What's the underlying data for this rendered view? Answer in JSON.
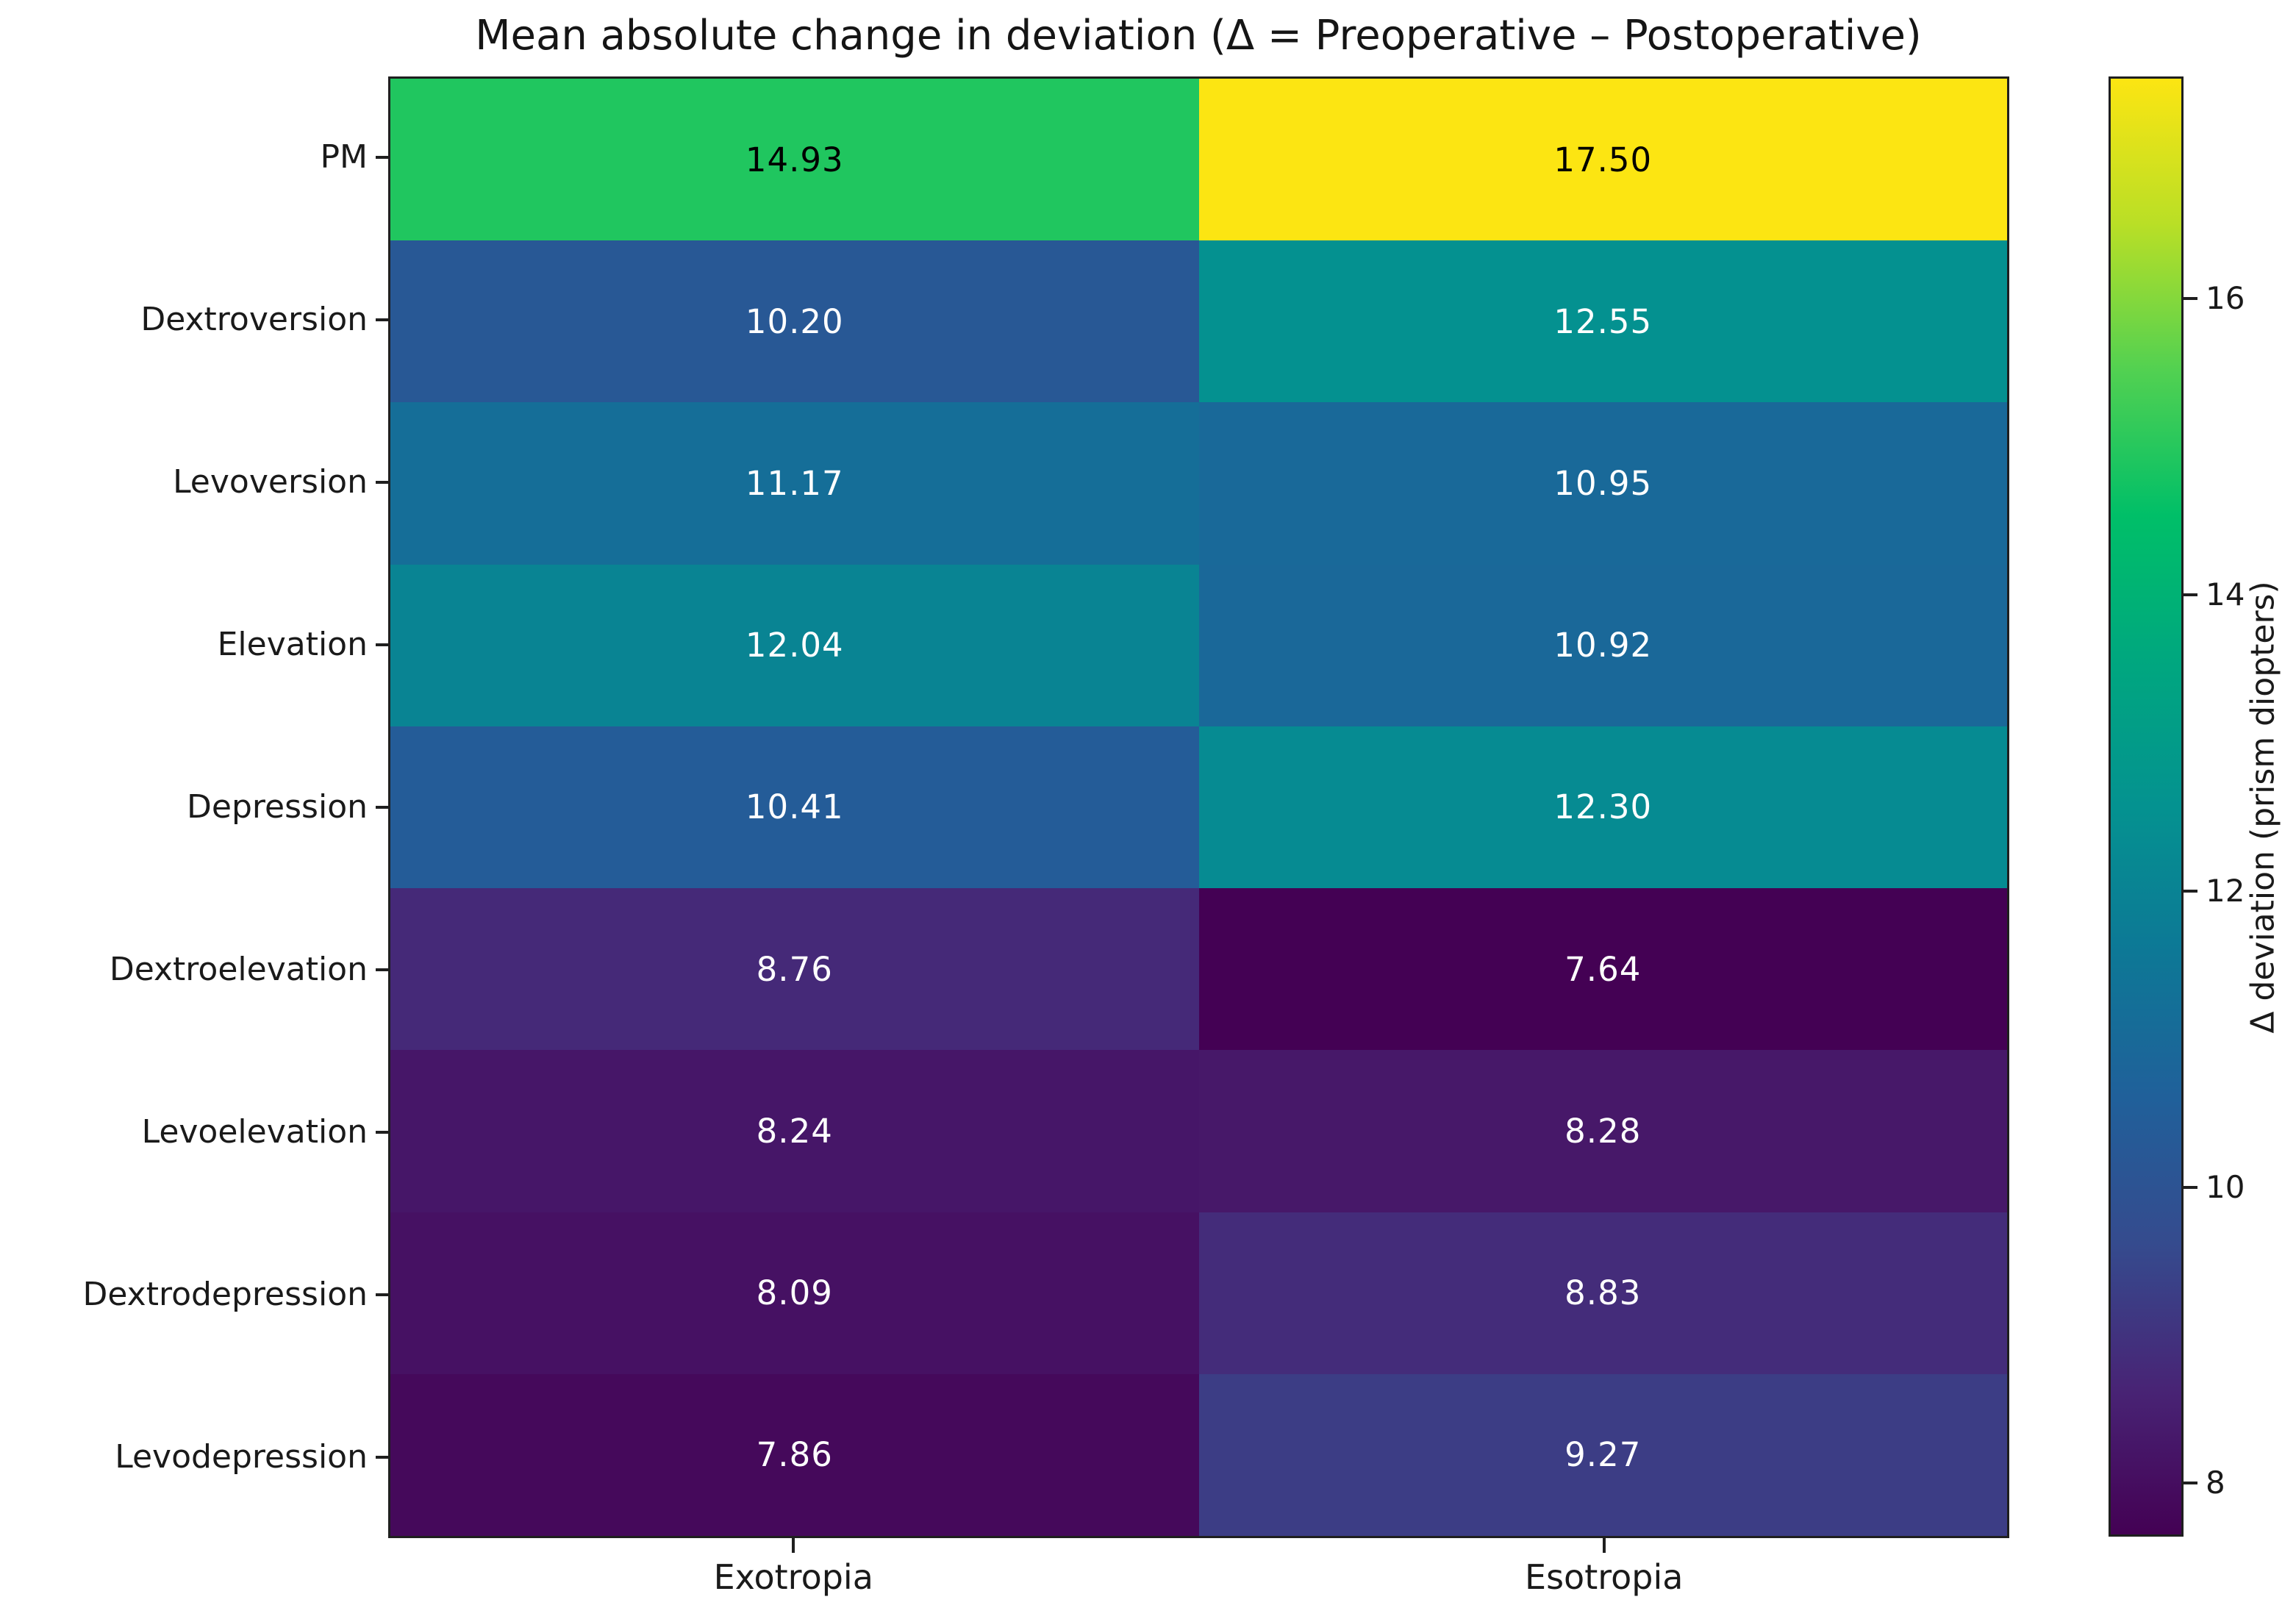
{
  "chart_data": {
    "type": "heatmap",
    "title": "Mean absolute change in deviation (Δ = Preoperative – Postoperative)",
    "rows": [
      "PM",
      "Dextroversion",
      "Levoversion",
      "Elevation",
      "Depression",
      "Dextroelevation",
      "Levoelevation",
      "Dextrodepression",
      "Levodepression"
    ],
    "columns": [
      "Exotropia",
      "Esotropia"
    ],
    "values": [
      [
        14.93,
        17.5
      ],
      [
        10.2,
        12.55
      ],
      [
        11.17,
        10.95
      ],
      [
        12.04,
        10.92
      ],
      [
        10.41,
        12.3
      ],
      [
        8.76,
        7.64
      ],
      [
        8.24,
        8.28
      ],
      [
        8.09,
        8.83
      ],
      [
        7.86,
        9.27
      ]
    ],
    "cell_label_format": "0.00",
    "colorbar": {
      "label": "Δ deviation (prism diopters)",
      "ticks": [
        8,
        10,
        12,
        14,
        16
      ],
      "vmin": 7.64,
      "vmax": 17.5,
      "position": "right"
    },
    "colormap": {
      "name": "viridis",
      "anchors": [
        [
          0.0,
          "#440154"
        ],
        [
          0.1,
          "#482475"
        ],
        [
          0.2,
          "#354b8e"
        ],
        [
          0.3,
          "#20609a"
        ],
        [
          0.4,
          "#0d7896"
        ],
        [
          0.5,
          "#049290"
        ],
        [
          0.6,
          "#00a77f"
        ],
        [
          0.7,
          "#00bf68"
        ],
        [
          0.8,
          "#52d151"
        ],
        [
          0.9,
          "#b9df26"
        ],
        [
          1.0,
          "#fce512"
        ]
      ]
    },
    "annotation_colors": {
      "on_light": "#000000",
      "on_dark": "#ffffff"
    },
    "layout": {
      "grid": false,
      "legend": "colorbar-right"
    }
  }
}
